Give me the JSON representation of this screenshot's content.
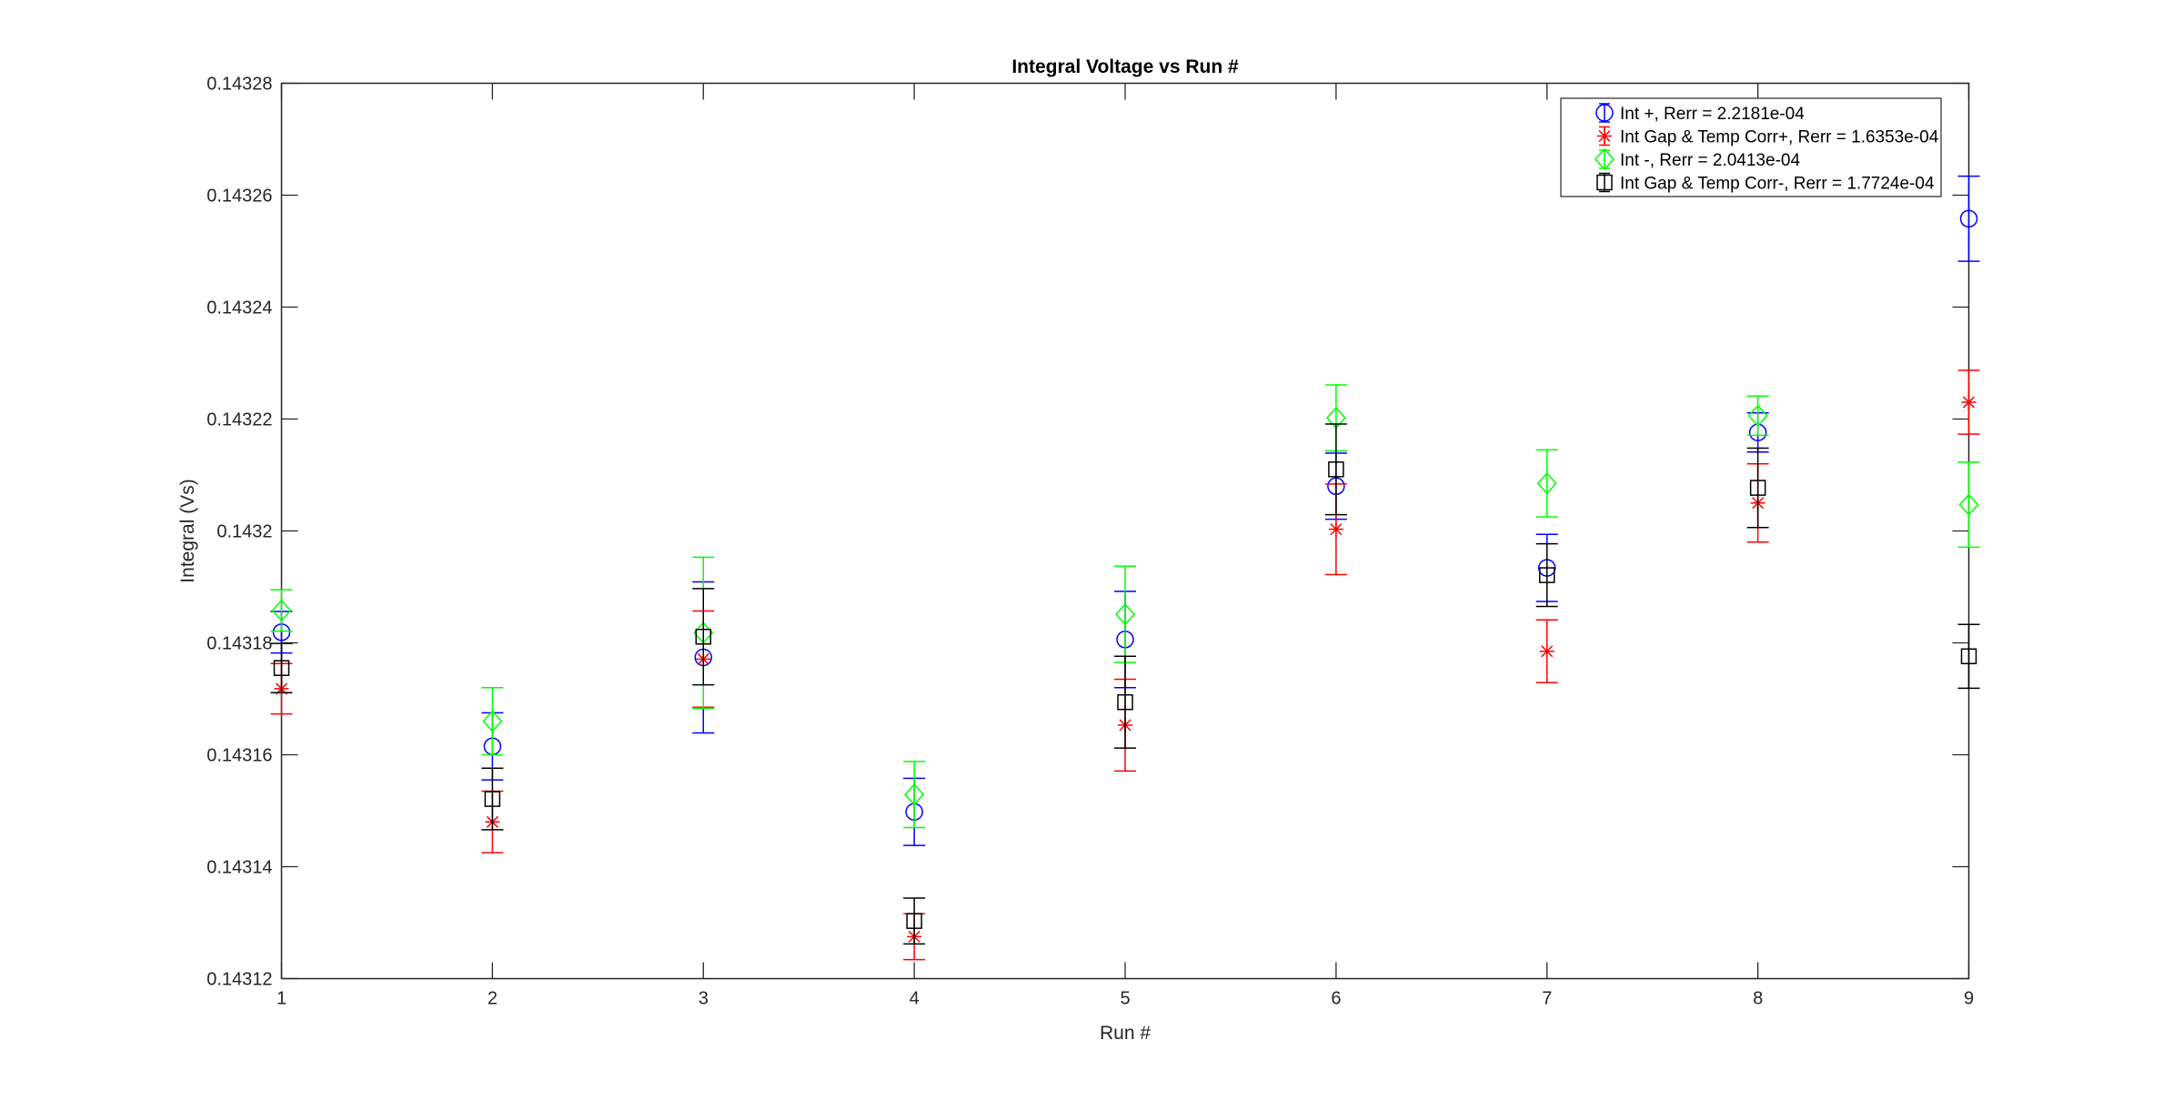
{
  "chart_data": {
    "type": "scatter",
    "title": "Integral Voltage vs Run #",
    "xlabel": "Run #",
    "ylabel": "Integral (Vs)",
    "xlim": [
      1,
      9
    ],
    "ylim": [
      0.14312,
      0.14328
    ],
    "xticks": [
      1,
      2,
      3,
      4,
      5,
      6,
      7,
      8,
      9
    ],
    "yticks": [
      0.14312,
      0.14314,
      0.14316,
      0.14318,
      0.1432,
      0.14322,
      0.14324,
      0.14326,
      0.14328
    ],
    "ytick_labels": [
      "0.14312",
      "0.14314",
      "0.14316",
      "0.14318",
      "0.1432",
      "0.14322",
      "0.14324",
      "0.14326",
      "0.14328"
    ],
    "grid": false,
    "legend_position": "top-right",
    "x": [
      1,
      2,
      3,
      4,
      5,
      6,
      7,
      8,
      9
    ],
    "series": [
      {
        "name": "Int +, Rerr = 2.2181e-04",
        "color": "#0000ff",
        "marker": "circle",
        "values": [
          0.1431819,
          0.1431615,
          0.1431774,
          0.1431498,
          0.1431806,
          0.143208,
          0.1431934,
          0.1432176,
          0.1432558
        ],
        "errors": [
          3.7e-06,
          6e-06,
          1.35e-05,
          6e-06,
          8.6e-06,
          5.9e-06,
          6e-06,
          3.5e-06,
          7.6e-06
        ]
      },
      {
        "name": "Int Gap & Temp Corr+, Rerr = 1.6353e-04",
        "color": "#ff0000",
        "marker": "asterisk",
        "values": [
          0.1431718,
          0.143148,
          0.1431771,
          0.1431275,
          0.1431653,
          0.1432003,
          0.1431785,
          0.143205,
          0.143223
        ],
        "errors": [
          4.5e-06,
          5.5e-06,
          8.6e-06,
          4.1e-06,
          8.2e-06,
          8.1e-06,
          5.6e-06,
          7e-06,
          5.7e-06
        ]
      },
      {
        "name": "Int -, Rerr = 2.0413e-04",
        "color": "#00ff00",
        "marker": "diamond",
        "values": [
          0.1431858,
          0.143166,
          0.1431818,
          0.1431529,
          0.1431851,
          0.1432202,
          0.1432085,
          0.1432206,
          0.1432047
        ],
        "errors": [
          3.7e-06,
          6e-06,
          1.35e-05,
          5.9e-06,
          8.6e-06,
          5.9e-06,
          6e-06,
          3.5e-06,
          7.6e-06
        ]
      },
      {
        "name": "Int Gap & Temp Corr-, Rerr = 1.7724e-04",
        "color": "#000000",
        "marker": "square",
        "values": [
          0.1431755,
          0.1431521,
          0.1431811,
          0.1431303,
          0.1431694,
          0.143211,
          0.1431921,
          0.1432077,
          0.1431776
        ],
        "errors": [
          4.4e-06,
          5.5e-06,
          8.6e-06,
          4.1e-06,
          8.2e-06,
          8.1e-06,
          5.6e-06,
          7.1e-06,
          5.7e-06
        ]
      }
    ]
  }
}
